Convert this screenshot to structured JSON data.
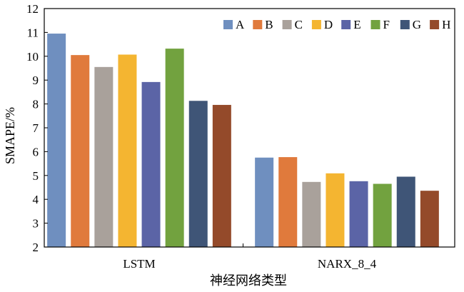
{
  "chart_data": {
    "type": "bar",
    "title": "",
    "xlabel": "神经网络类型",
    "ylabel": "SMAPE/%",
    "categories": [
      "LSTM",
      "NARX_8_4"
    ],
    "ylim": [
      2,
      12
    ],
    "yticks": [
      2,
      3,
      4,
      5,
      6,
      7,
      8,
      9,
      10,
      11,
      12
    ],
    "grid": false,
    "legend_position": "top-right",
    "series": [
      {
        "name": "A",
        "color": "#6f8fbf",
        "values": [
          10.95,
          5.75
        ]
      },
      {
        "name": "B",
        "color": "#e07a3c",
        "values": [
          10.05,
          5.77
        ]
      },
      {
        "name": "C",
        "color": "#a9a19b",
        "values": [
          9.55,
          4.73
        ]
      },
      {
        "name": "D",
        "color": "#f4b531",
        "values": [
          10.07,
          5.09
        ]
      },
      {
        "name": "E",
        "color": "#5b64a6",
        "values": [
          8.92,
          4.76
        ]
      },
      {
        "name": "F",
        "color": "#72a23f",
        "values": [
          10.32,
          4.65
        ]
      },
      {
        "name": "G",
        "color": "#3f5577",
        "values": [
          8.13,
          4.95
        ]
      },
      {
        "name": "H",
        "color": "#944a2a",
        "values": [
          7.96,
          4.36
        ]
      }
    ]
  }
}
